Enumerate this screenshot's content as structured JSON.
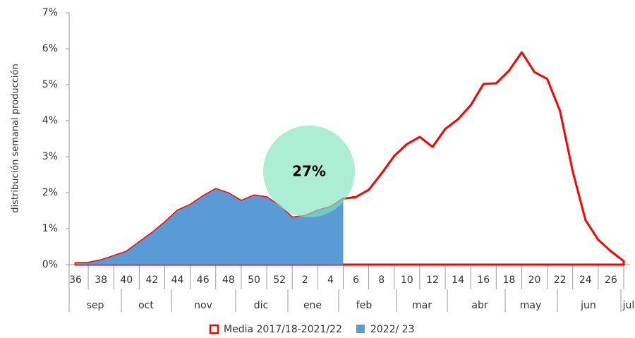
{
  "chart_data": {
    "type": "area",
    "y_label": "distribución semanal producción",
    "categories": [
      "36",
      null,
      "38",
      null,
      "40",
      null,
      "42",
      null,
      "44",
      null,
      "46",
      null,
      "48",
      null,
      "50",
      null,
      "52",
      null,
      "2",
      null,
      "4",
      null,
      "6",
      null,
      "8",
      null,
      "10",
      null,
      "12",
      null,
      "14",
      null,
      "16",
      null,
      "18",
      null,
      "20",
      null,
      "22",
      null,
      "24",
      null,
      "26",
      null
    ],
    "months": [
      "sep",
      "oct",
      "nov",
      "dic",
      "ene",
      "feb",
      "mar",
      "abr",
      "may",
      "jun",
      "jul"
    ],
    "series": [
      {
        "name": "Media 2017/18-2021/22",
        "color": "#ff0000",
        "style": "outline",
        "values": [
          0.04,
          0.05,
          0.12,
          0.24,
          0.36,
          0.62,
          0.88,
          1.17,
          1.5,
          1.66,
          1.9,
          2.1,
          1.98,
          1.77,
          1.92,
          1.87,
          1.63,
          1.31,
          1.35,
          1.5,
          1.6,
          1.83,
          1.88,
          2.08,
          2.53,
          3.02,
          3.35,
          3.55,
          3.27,
          3.77,
          4.04,
          4.43,
          5.02,
          5.04,
          5.39,
          5.9,
          5.35,
          5.16,
          4.27,
          2.59,
          1.24,
          0.69,
          0.37,
          0.1
        ]
      },
      {
        "name": "2022/ 23",
        "color": "#5b9bd5",
        "style": "fill",
        "values": [
          0.04,
          0.05,
          0.12,
          0.24,
          0.36,
          0.62,
          0.88,
          1.17,
          1.5,
          1.66,
          1.9,
          2.1,
          1.98,
          1.77,
          1.92,
          1.87,
          1.63,
          1.31,
          1.35,
          1.5,
          1.6,
          1.83,
          null,
          null,
          null,
          null,
          null,
          null,
          null,
          null,
          null,
          null,
          null,
          null,
          null,
          null,
          null,
          null,
          null,
          null,
          null,
          null,
          null,
          null
        ]
      }
    ],
    "annotation": "27%",
    "ylim": [
      0,
      7
    ],
    "yticks": [
      {
        "value": 0,
        "label": "0%"
      },
      {
        "value": 1,
        "label": "1%"
      },
      {
        "value": 2,
        "label": "2%"
      },
      {
        "value": 3,
        "label": "3%"
      },
      {
        "value": 4,
        "label": "4%"
      },
      {
        "value": 5,
        "label": "5%"
      },
      {
        "value": 6,
        "label": "6%"
      },
      {
        "value": 7,
        "label": "7%"
      }
    ],
    "legend": "bottom"
  }
}
